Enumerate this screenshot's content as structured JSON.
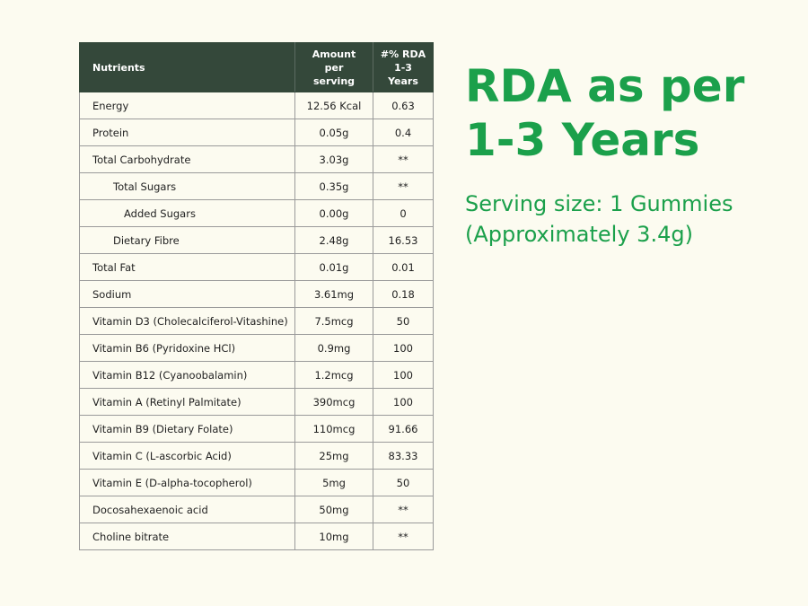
{
  "table": {
    "headers": {
      "nutrients": "Nutrients",
      "amount_line1": "Amount",
      "amount_line2": "per",
      "amount_line3": "serving",
      "rda_line1": "#% RDA",
      "rda_line2": "1-3",
      "rda_line3": "Years"
    },
    "rows": [
      {
        "name": "Energy",
        "amount": "12.56 Kcal",
        "rda": "0.63"
      },
      {
        "name": "Protein",
        "amount": "0.05g",
        "rda": "0.4"
      },
      {
        "name": "Total Carbohydrate",
        "amount": "3.03g",
        "rda": "**"
      },
      {
        "name": "Total Sugars",
        "amount": "0.35g",
        "rda": "**"
      },
      {
        "name": "Added Sugars",
        "amount": "0.00g",
        "rda": "0"
      },
      {
        "name": "Dietary Fibre",
        "amount": "2.48g",
        "rda": "16.53"
      },
      {
        "name": "Total Fat",
        "amount": "0.01g",
        "rda": "0.01"
      },
      {
        "name": "Sodium",
        "amount": "3.61mg",
        "rda": "0.18"
      },
      {
        "name": "Vitamin D3 (Cholecalciferol-Vitashine)",
        "amount": "7.5mcg",
        "rda": "50"
      },
      {
        "name": "Vitamin B6 (Pyridoxine HCl)",
        "amount": "0.9mg",
        "rda": "100"
      },
      {
        "name": "Vitamin B12 (Cyanoobalamin)",
        "amount": "1.2mcg",
        "rda": "100"
      },
      {
        "name": "Vitamin A (Retinyl Palmitate)",
        "amount": "390mcg",
        "rda": "100"
      },
      {
        "name": "Vitamin B9 (Dietary Folate)",
        "amount": "110mcg",
        "rda": "91.66"
      },
      {
        "name": "Vitamin C (L-ascorbic Acid)",
        "amount": "25mg",
        "rda": "83.33"
      },
      {
        "name": "Vitamin E (D-alpha-tocopherol)",
        "amount": "5mg",
        "rda": "50"
      },
      {
        "name": "Docosahexaenoic acid",
        "amount": "50mg",
        "rda": "**"
      },
      {
        "name": "Choline bitrate",
        "amount": "10mg",
        "rda": "**"
      }
    ]
  },
  "headline": {
    "line1": "RDA as per",
    "line2": "1-3 Years"
  },
  "serving": {
    "line1": "Serving size: 1 Gummies",
    "line2": "(Approximately 3.4g)"
  },
  "colors": {
    "accent_green": "#1ba04b",
    "header_bg": "#34483a",
    "page_bg": "#fcfbf0"
  }
}
